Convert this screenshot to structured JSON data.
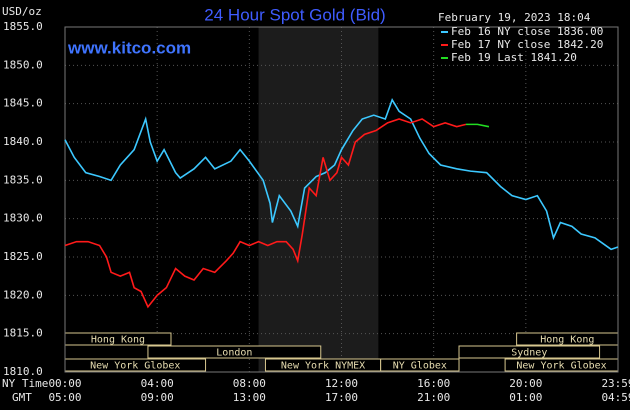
{
  "chart_data": {
    "type": "line",
    "title": "24 Hour Spot Gold (Bid)",
    "unit_label": "USD/oz",
    "timestamp": "February 19, 2023 18:04",
    "watermark": "www.kitco.com",
    "x_label": "NY Time",
    "x2_label": "GMT",
    "xlim": [
      0,
      24
    ],
    "xticks": [
      {
        "value": 0,
        "label": "00:00"
      },
      {
        "value": 4,
        "label": "04:00"
      },
      {
        "value": 8,
        "label": "08:00"
      },
      {
        "value": 12,
        "label": "12:00"
      },
      {
        "value": 16,
        "label": "16:00"
      },
      {
        "value": 20,
        "label": "20:00"
      },
      {
        "value": 24,
        "label": "23:59"
      }
    ],
    "x2ticks": [
      {
        "value": 0,
        "label": "05:00"
      },
      {
        "value": 4,
        "label": "09:00"
      },
      {
        "value": 8,
        "label": "13:00"
      },
      {
        "value": 12,
        "label": "17:00"
      },
      {
        "value": 16,
        "label": "21:00"
      },
      {
        "value": 20,
        "label": "01:00"
      },
      {
        "value": 24,
        "label": "04:59"
      }
    ],
    "ylim": [
      1810,
      1855
    ],
    "yticks": [
      {
        "value": 1810,
        "label": "1810.0"
      },
      {
        "value": 1815,
        "label": "1815.0"
      },
      {
        "value": 1820,
        "label": "1820.0"
      },
      {
        "value": 1825,
        "label": "1825.0"
      },
      {
        "value": 1830,
        "label": "1830.0"
      },
      {
        "value": 1835,
        "label": "1835.0"
      },
      {
        "value": 1840,
        "label": "1840.0"
      },
      {
        "value": 1845,
        "label": "1845.0"
      },
      {
        "value": 1850,
        "label": "1850.0"
      },
      {
        "value": 1855,
        "label": "1855.0"
      }
    ],
    "grid": true,
    "shaded_range": [
      8.4,
      13.6
    ],
    "sessions": [
      {
        "label": "Hong Kong",
        "start": 0,
        "end": 4.6
      },
      {
        "label": "London",
        "start": 3.6,
        "end": 11.1
      },
      {
        "label": "New York Globex",
        "start": 0,
        "end": 6.1
      },
      {
        "label": "New York NYMEX",
        "start": 8.7,
        "end": 13.7
      },
      {
        "label": "NY Globex",
        "start": 13.7,
        "end": 17.1
      },
      {
        "label": "Sydney",
        "start": 17.1,
        "end": 23.2
      },
      {
        "label": "Hong Kong",
        "start": 19.6,
        "end": 24
      },
      {
        "label": "New York Globex",
        "start": 19.1,
        "end": 24
      }
    ],
    "series": [
      {
        "name": "Feb 16 NY close 1836.00",
        "color": "#3cc8ff",
        "x": [
          0,
          0.4,
          0.9,
          1.5,
          2,
          2.4,
          2.7,
          3,
          3.5,
          3.7,
          4,
          4.3,
          4.8,
          5,
          5.6,
          6.1,
          6.5,
          7.2,
          7.6,
          8,
          8.6,
          8.9,
          9,
          9.3,
          9.8,
          10.1,
          10.4,
          10.9,
          11.3,
          11.7,
          12,
          12.5,
          12.9,
          13.4,
          13.9,
          14.2,
          14.5,
          15,
          15.4,
          15.8,
          16.3,
          17,
          17.6,
          18.3,
          18.9,
          19.4,
          20,
          20.5,
          20.9,
          21.2,
          21.5,
          22,
          22.4,
          23,
          23.7,
          24
        ],
        "values": [
          1840.3,
          1838,
          1836,
          1835.5,
          1835,
          1837,
          1838,
          1839,
          1843,
          1840,
          1837.5,
          1839,
          1836,
          1835.3,
          1836.5,
          1838,
          1836.5,
          1837.5,
          1839,
          1837.5,
          1835,
          1832,
          1829.5,
          1833,
          1831,
          1829,
          1834,
          1835.5,
          1836,
          1837,
          1839,
          1841.5,
          1843,
          1843.5,
          1843,
          1845.5,
          1844,
          1843,
          1840.5,
          1838.5,
          1837,
          1836.5,
          1836.2,
          1836,
          1834.2,
          1833,
          1832.5,
          1833,
          1831,
          1827.5,
          1829.5,
          1829,
          1828,
          1827.5,
          1826,
          1826.3
        ]
      },
      {
        "name": "Feb 17 NY close 1842.20",
        "color": "#ff1a1a",
        "x": [
          0,
          0.5,
          1,
          1.5,
          1.8,
          2,
          2.4,
          2.8,
          3,
          3.3,
          3.6,
          4,
          4.4,
          4.8,
          5.2,
          5.6,
          6,
          6.5,
          7,
          7.3,
          7.6,
          8,
          8.4,
          8.8,
          9.2,
          9.6,
          9.9,
          10.1,
          10.3,
          10.6,
          10.9,
          11.2,
          11.5,
          11.8,
          12,
          12.3,
          12.6,
          13,
          13.5,
          14,
          14.5,
          15,
          15.5,
          16,
          16.5,
          17,
          17.4
        ],
        "values": [
          1826.5,
          1827,
          1827,
          1826.5,
          1825,
          1823,
          1822.5,
          1823,
          1821,
          1820.5,
          1818.5,
          1820,
          1821,
          1823.5,
          1822.5,
          1822,
          1823.5,
          1823,
          1824.5,
          1825.5,
          1827,
          1826.5,
          1827,
          1826.5,
          1827,
          1827,
          1826,
          1824.5,
          1828,
          1834,
          1833,
          1838,
          1835,
          1836,
          1838,
          1837,
          1840,
          1841,
          1841.5,
          1842.5,
          1843,
          1842.5,
          1843,
          1842,
          1842.5,
          1842,
          1842.3
        ]
      },
      {
        "name": "Feb 19 Last 1841.20",
        "color": "#22dd22",
        "x": [
          17.4,
          17.9,
          18.4
        ],
        "values": [
          1842.3,
          1842.3,
          1842
        ]
      }
    ]
  }
}
